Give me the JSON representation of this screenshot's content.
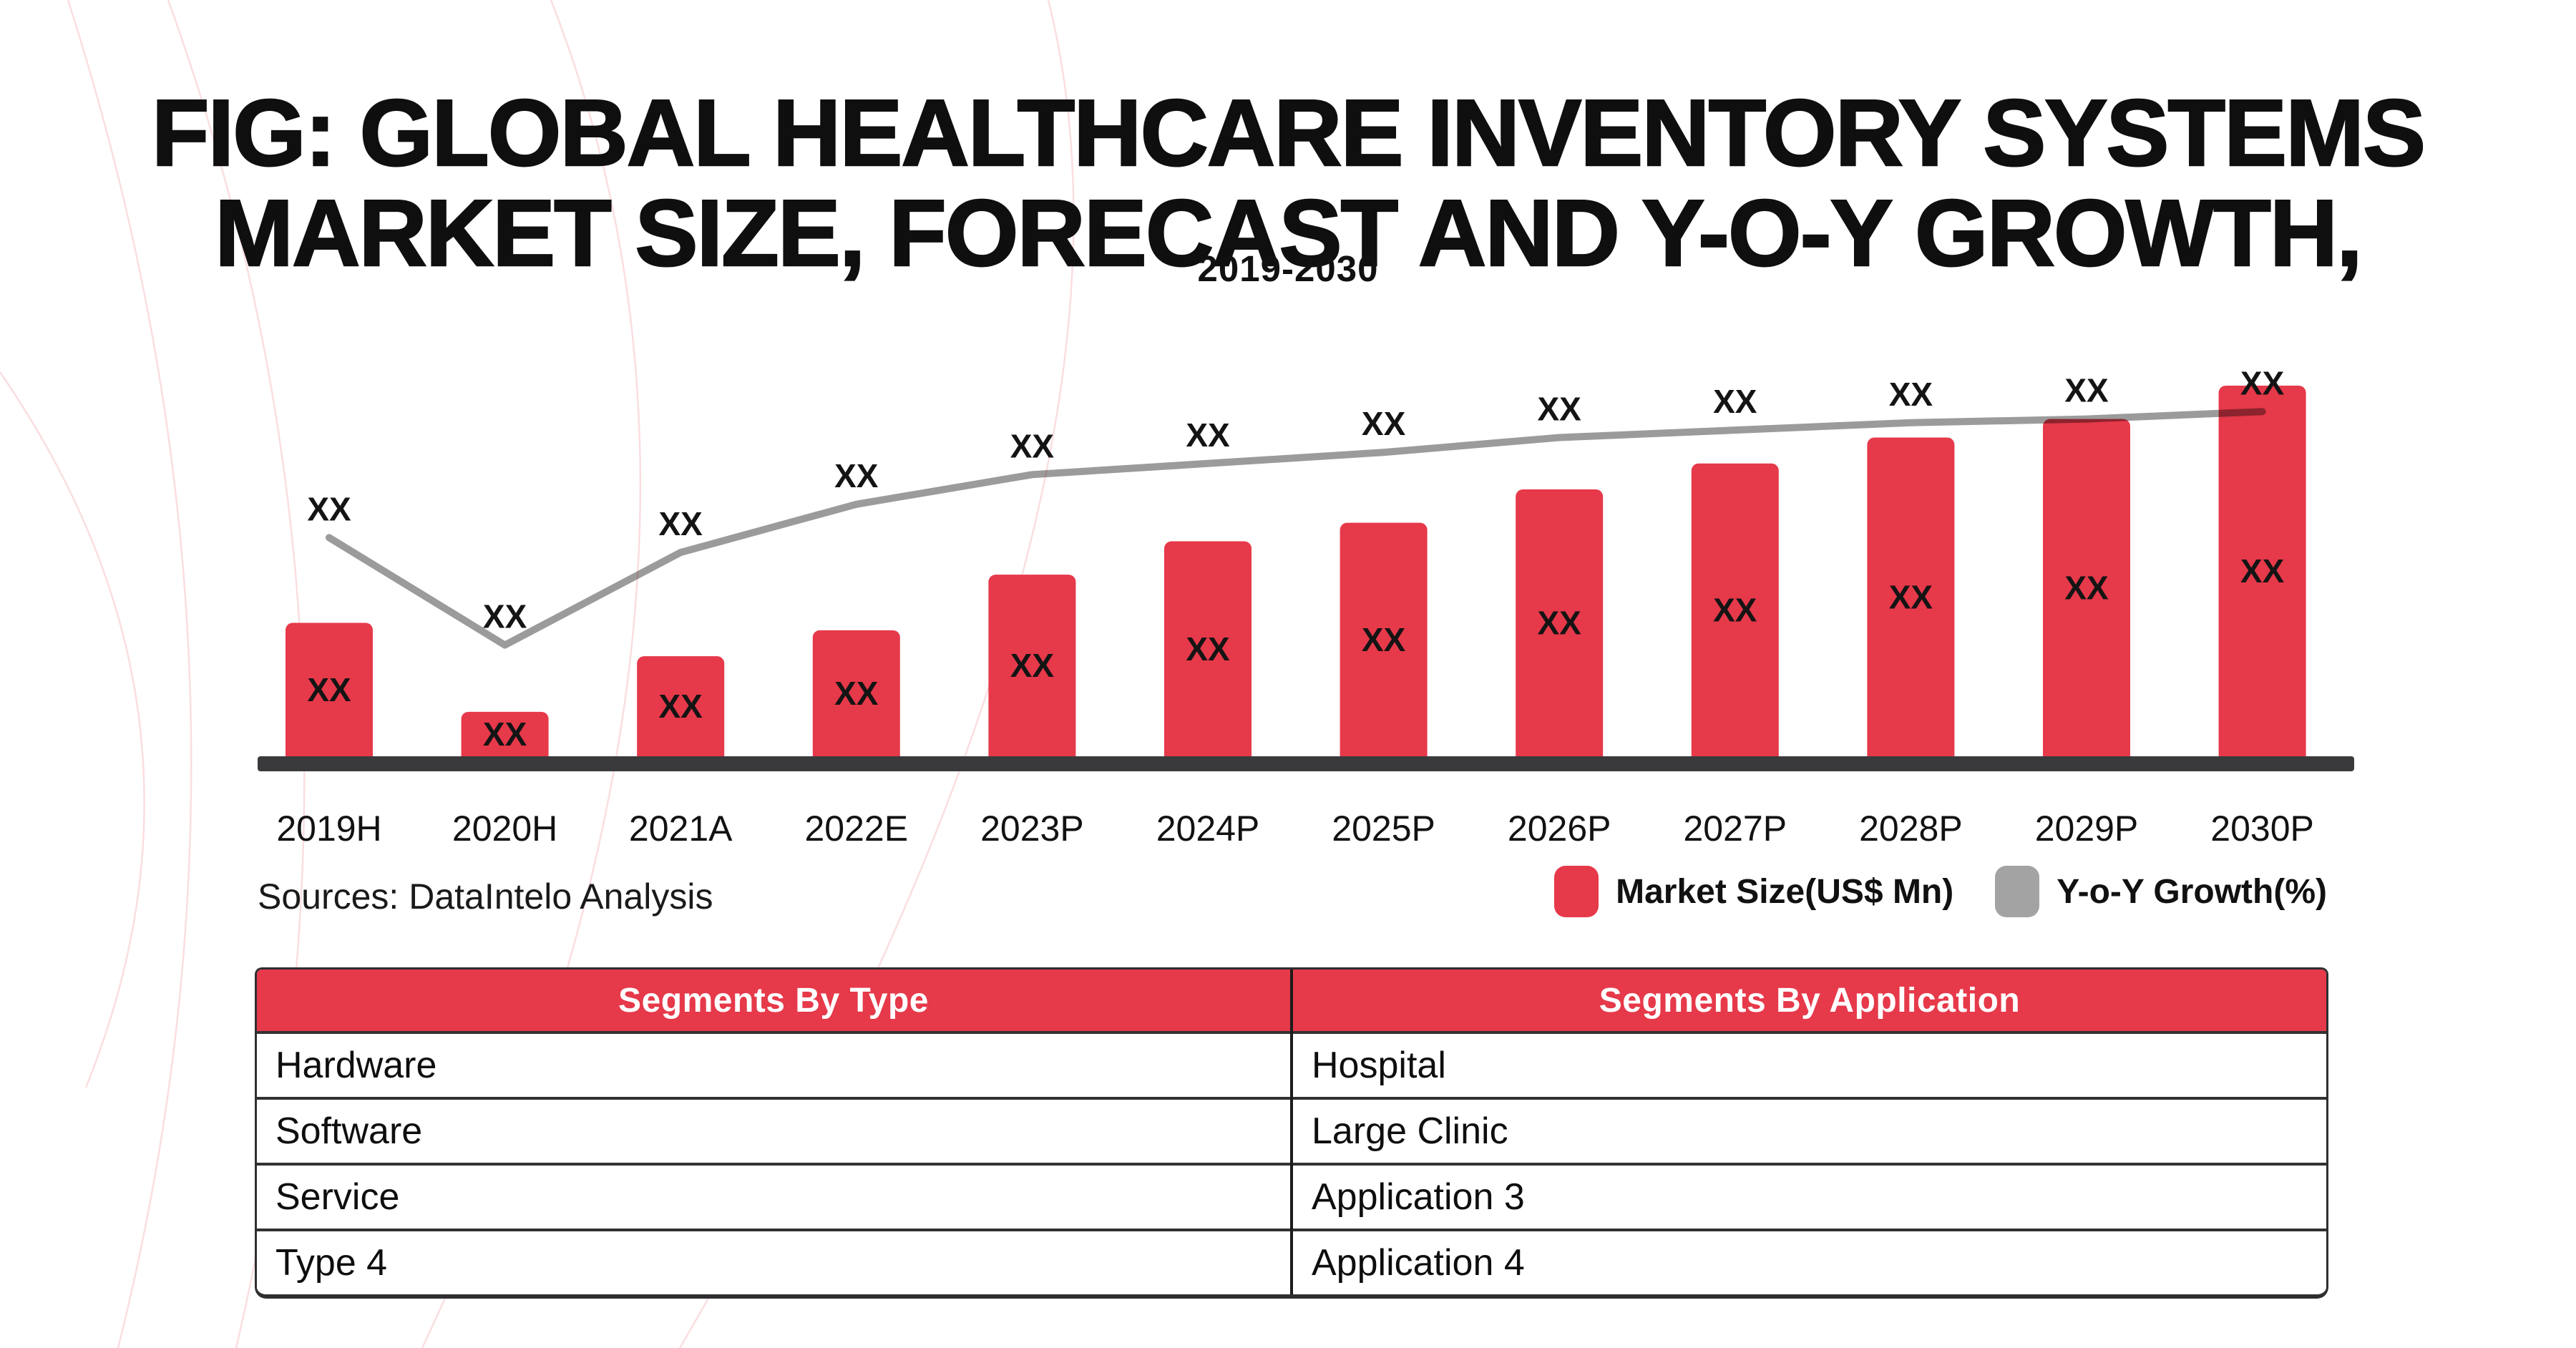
{
  "header": {
    "title_line1": "FIG: GLOBAL HEALTHCARE INVENTORY SYSTEMS",
    "title_line2": "MARKET SIZE, FORECAST AND Y-O-Y GROWTH,",
    "subtitle": "2019-2030"
  },
  "footer": {
    "sources": "Sources: DataIntelo Analysis"
  },
  "legend": {
    "items": [
      {
        "label": "Market Size(US$ Mn)",
        "color": "#e6394a",
        "swatch": "red-rounded-square"
      },
      {
        "label": "Y-o-Y Growth(%)",
        "color": "#a3a3a3",
        "swatch": "gray-rounded-square"
      }
    ]
  },
  "chart_data": {
    "type": "bar+line",
    "title": "FIG: GLOBAL HEALTHCARE INVENTORY SYSTEMS MARKET SIZE, FORECAST AND Y-O-Y GROWTH, 2019-2030",
    "categories": [
      "2019H",
      "2020H",
      "2021A",
      "2022E",
      "2023P",
      "2024P",
      "2025P",
      "2026P",
      "2027P",
      "2028P",
      "2029P",
      "2030P"
    ],
    "series": [
      {
        "name": "Market Size(US$ Mn)",
        "type": "bar",
        "color": "#e6394a",
        "value_labels": [
          "XX",
          "XX",
          "XX",
          "XX",
          "XX",
          "XX",
          "XX",
          "XX",
          "XX",
          "XX",
          "XX",
          "XX"
        ],
        "values_rel_height_pct": [
          36,
          12,
          27,
          34,
          49,
          58,
          63,
          72,
          79,
          86,
          91,
          100
        ]
      },
      {
        "name": "Y-o-Y Growth(%)",
        "type": "line",
        "color": "#9b9b9b",
        "value_labels": [
          "XX",
          "XX",
          "XX",
          "XX",
          "XX",
          "XX",
          "XX",
          "XX",
          "XX",
          "XX",
          "XX",
          "XX"
        ],
        "values_rel_height_pct": [
          59,
          30,
          55,
          68,
          76,
          79,
          82,
          86,
          88,
          90,
          91,
          93
        ]
      }
    ],
    "value_note": "All data values are masked as 'XX' in the source figure",
    "axis": {
      "x_axis_line_color": "#3a3a3c",
      "label_color": "#121212",
      "gridlines": false,
      "y_axis_shown": false
    },
    "legend_position": "bottom-right"
  },
  "table": {
    "columns": [
      "Segments By Type",
      "Segments By Application"
    ],
    "rows": [
      [
        "Hardware",
        "Hospital"
      ],
      [
        "Software",
        "Large Clinic"
      ],
      [
        "Service",
        "Application 3"
      ],
      [
        "Type 4",
        "Application 4"
      ]
    ],
    "header_bg": "#e6394a",
    "header_text_color": "#ffffff"
  }
}
